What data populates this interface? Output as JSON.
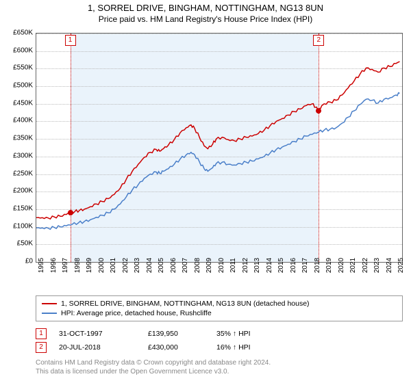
{
  "title": "1, SORREL DRIVE, BINGHAM, NOTTINGHAM, NG13 8UN",
  "subtitle": "Price paid vs. HM Land Registry's House Price Index (HPI)",
  "chart": {
    "type": "line",
    "background_color": "#ffffff",
    "shaded_color": "#eaf3fb",
    "grid_color": "#bbbbbb",
    "border_color": "#666666",
    "x_range": [
      1995,
      2025.5
    ],
    "y_range": [
      0,
      650000
    ],
    "y_tick_step": 50000,
    "x_ticks": [
      1995,
      1996,
      1997,
      1998,
      1999,
      2000,
      2001,
      2002,
      2003,
      2004,
      2005,
      2006,
      2007,
      2008,
      2009,
      2010,
      2011,
      2012,
      2013,
      2014,
      2015,
      2016,
      2017,
      2018,
      2019,
      2020,
      2021,
      2022,
      2023,
      2024,
      2025
    ],
    "y_labels": [
      "£0",
      "£50K",
      "£100K",
      "£150K",
      "£200K",
      "£250K",
      "£300K",
      "£350K",
      "£400K",
      "£450K",
      "£500K",
      "£550K",
      "£600K",
      "£650K"
    ],
    "shaded_start": 1997.83,
    "shaded_end": 2018.55,
    "markers": [
      {
        "n": "1",
        "x": 1997.83,
        "y": 139950
      },
      {
        "n": "2",
        "x": 2018.55,
        "y": 430000
      }
    ],
    "series": [
      {
        "name": "1, SORREL DRIVE, BINGHAM, NOTTINGHAM, NG13 8UN (detached house)",
        "color": "#cc0000",
        "width": 1.5,
        "points": [
          [
            1995.0,
            126000
          ],
          [
            1995.5,
            126000
          ],
          [
            1996.0,
            125000
          ],
          [
            1996.5,
            128000
          ],
          [
            1997.0,
            130000
          ],
          [
            1997.5,
            135000
          ],
          [
            1997.83,
            139950
          ],
          [
            1998.2,
            143000
          ],
          [
            1998.6,
            147000
          ],
          [
            1999.0,
            150000
          ],
          [
            1999.5,
            157000
          ],
          [
            2000.0,
            165000
          ],
          [
            2000.5,
            172000
          ],
          [
            2001.0,
            180000
          ],
          [
            2001.5,
            192000
          ],
          [
            2002.0,
            210000
          ],
          [
            2002.5,
            235000
          ],
          [
            2003.0,
            258000
          ],
          [
            2003.5,
            278000
          ],
          [
            2004.0,
            298000
          ],
          [
            2004.5,
            312000
          ],
          [
            2005.0,
            320000
          ],
          [
            2005.3,
            315000
          ],
          [
            2005.6,
            322000
          ],
          [
            2006.0,
            332000
          ],
          [
            2006.5,
            348000
          ],
          [
            2007.0,
            368000
          ],
          [
            2007.5,
            382000
          ],
          [
            2007.9,
            390000
          ],
          [
            2008.2,
            380000
          ],
          [
            2008.6,
            355000
          ],
          [
            2009.0,
            330000
          ],
          [
            2009.3,
            322000
          ],
          [
            2009.7,
            335000
          ],
          [
            2010.0,
            350000
          ],
          [
            2010.5,
            355000
          ],
          [
            2011.0,
            348000
          ],
          [
            2011.5,
            345000
          ],
          [
            2012.0,
            350000
          ],
          [
            2012.5,
            355000
          ],
          [
            2013.0,
            358000
          ],
          [
            2013.5,
            365000
          ],
          [
            2014.0,
            375000
          ],
          [
            2014.5,
            388000
          ],
          [
            2015.0,
            400000
          ],
          [
            2015.5,
            408000
          ],
          [
            2016.0,
            418000
          ],
          [
            2016.5,
            428000
          ],
          [
            2017.0,
            435000
          ],
          [
            2017.5,
            445000
          ],
          [
            2018.0,
            450000
          ],
          [
            2018.3,
            440000
          ],
          [
            2018.55,
            430000
          ],
          [
            2018.8,
            445000
          ],
          [
            2019.0,
            450000
          ],
          [
            2019.5,
            455000
          ],
          [
            2020.0,
            460000
          ],
          [
            2020.5,
            475000
          ],
          [
            2021.0,
            495000
          ],
          [
            2021.5,
            515000
          ],
          [
            2022.0,
            535000
          ],
          [
            2022.5,
            552000
          ],
          [
            2023.0,
            548000
          ],
          [
            2023.5,
            540000
          ],
          [
            2024.0,
            552000
          ],
          [
            2024.5,
            556000
          ],
          [
            2025.0,
            565000
          ],
          [
            2025.3,
            570000
          ]
        ]
      },
      {
        "name": "HPI: Average price, detached house, Rushcliffe",
        "color": "#4a7fc9",
        "width": 1.5,
        "points": [
          [
            1995.0,
            97000
          ],
          [
            1995.5,
            97000
          ],
          [
            1996.0,
            96000
          ],
          [
            1996.5,
            98000
          ],
          [
            1997.0,
            100000
          ],
          [
            1997.5,
            103000
          ],
          [
            1998.0,
            107000
          ],
          [
            1998.5,
            111000
          ],
          [
            1999.0,
            115000
          ],
          [
            1999.5,
            120000
          ],
          [
            2000.0,
            127000
          ],
          [
            2000.5,
            133000
          ],
          [
            2001.0,
            140000
          ],
          [
            2001.5,
            150000
          ],
          [
            2002.0,
            165000
          ],
          [
            2002.5,
            185000
          ],
          [
            2003.0,
            205000
          ],
          [
            2003.5,
            220000
          ],
          [
            2004.0,
            238000
          ],
          [
            2004.5,
            250000
          ],
          [
            2005.0,
            256000
          ],
          [
            2005.3,
            252000
          ],
          [
            2005.6,
            258000
          ],
          [
            2006.0,
            265000
          ],
          [
            2006.5,
            278000
          ],
          [
            2007.0,
            293000
          ],
          [
            2007.5,
            305000
          ],
          [
            2007.9,
            312000
          ],
          [
            2008.2,
            305000
          ],
          [
            2008.6,
            285000
          ],
          [
            2009.0,
            265000
          ],
          [
            2009.3,
            258000
          ],
          [
            2009.7,
            268000
          ],
          [
            2010.0,
            280000
          ],
          [
            2010.5,
            284000
          ],
          [
            2011.0,
            278000
          ],
          [
            2011.5,
            276000
          ],
          [
            2012.0,
            280000
          ],
          [
            2012.5,
            284000
          ],
          [
            2013.0,
            287000
          ],
          [
            2013.5,
            293000
          ],
          [
            2014.0,
            300000
          ],
          [
            2014.5,
            310000
          ],
          [
            2015.0,
            320000
          ],
          [
            2015.5,
            327000
          ],
          [
            2016.0,
            335000
          ],
          [
            2016.5,
            343000
          ],
          [
            2017.0,
            350000
          ],
          [
            2017.5,
            358000
          ],
          [
            2018.0,
            363000
          ],
          [
            2018.55,
            370000
          ],
          [
            2019.0,
            375000
          ],
          [
            2019.5,
            378000
          ],
          [
            2020.0,
            382000
          ],
          [
            2020.5,
            395000
          ],
          [
            2021.0,
            412000
          ],
          [
            2021.5,
            430000
          ],
          [
            2022.0,
            448000
          ],
          [
            2022.5,
            463000
          ],
          [
            2023.0,
            460000
          ],
          [
            2023.5,
            452000
          ],
          [
            2024.0,
            463000
          ],
          [
            2024.5,
            467000
          ],
          [
            2025.0,
            475000
          ],
          [
            2025.3,
            480000
          ]
        ]
      }
    ]
  },
  "sales": [
    {
      "n": "1",
      "date": "31-OCT-1997",
      "price": "£139,950",
      "hpi": "35% ↑ HPI"
    },
    {
      "n": "2",
      "date": "20-JUL-2018",
      "price": "£430,000",
      "hpi": "16% ↑ HPI"
    }
  ],
  "footnote1": "Contains HM Land Registry data © Crown copyright and database right 2024.",
  "footnote2": "This data is licensed under the Open Government Licence v3.0."
}
